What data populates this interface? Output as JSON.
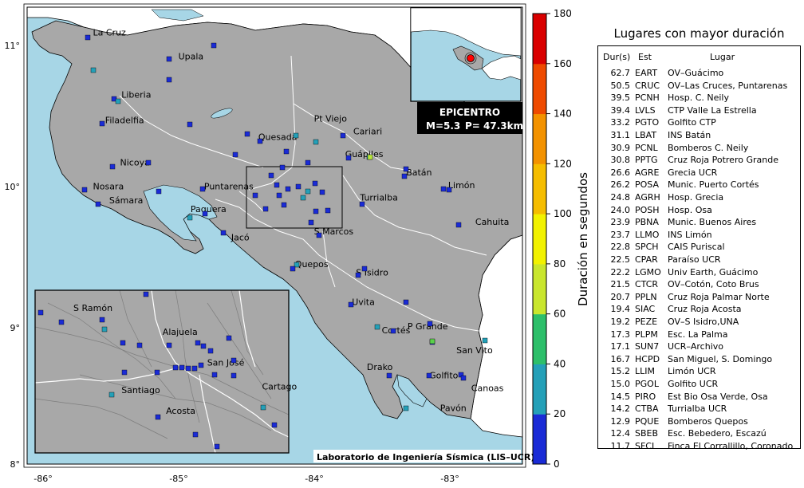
{
  "map": {
    "lat_ticks": [
      {
        "label": "11°",
        "value": 11
      },
      {
        "label": "10°",
        "value": 10
      },
      {
        "label": "9°",
        "value": 9
      },
      {
        "label": "8°",
        "value": 8
      }
    ],
    "lon_ticks": [
      {
        "label": "-86°",
        "value": -86
      },
      {
        "label": "-85°",
        "value": -85
      },
      {
        "label": "-84°",
        "value": -84
      },
      {
        "label": "-83°",
        "value": -83
      }
    ],
    "cities": [
      {
        "name": "La Cruz",
        "lon": -85.65,
        "lat": 11.07
      },
      {
        "name": "Upala",
        "lon": -85.02,
        "lat": 10.9
      },
      {
        "name": "Liberia",
        "lon": -85.44,
        "lat": 10.63
      },
      {
        "name": "Filadelfia",
        "lon": -85.56,
        "lat": 10.45
      },
      {
        "name": "Quesada",
        "lon": -84.43,
        "lat": 10.33
      },
      {
        "name": "Pt Viejo",
        "lon": -84.02,
        "lat": 10.46
      },
      {
        "name": "Cariari",
        "lon": -83.73,
        "lat": 10.37
      },
      {
        "name": "Nicoya",
        "lon": -85.45,
        "lat": 10.15
      },
      {
        "name": "Guápiles",
        "lon": -83.79,
        "lat": 10.21
      },
      {
        "name": "Batán",
        "lon": -83.34,
        "lat": 10.08
      },
      {
        "name": "Nosara",
        "lon": -85.65,
        "lat": 9.98
      },
      {
        "name": "Puntarenas",
        "lon": -84.83,
        "lat": 9.98
      },
      {
        "name": "Limón",
        "lon": -83.03,
        "lat": 9.99
      },
      {
        "name": "Sámara",
        "lon": -85.53,
        "lat": 9.88
      },
      {
        "name": "Turrialba",
        "lon": -83.68,
        "lat": 9.9
      },
      {
        "name": "Paquera",
        "lon": -84.93,
        "lat": 9.82
      },
      {
        "name": "Cahuita",
        "lon": -82.83,
        "lat": 9.73
      },
      {
        "name": "Jacó",
        "lon": -84.63,
        "lat": 9.62
      },
      {
        "name": "S Marcos",
        "lon": -84.02,
        "lat": 9.66
      },
      {
        "name": "Quepos",
        "lon": -84.16,
        "lat": 9.43
      },
      {
        "name": "S Isidro",
        "lon": -83.71,
        "lat": 9.37
      },
      {
        "name": "Uvita",
        "lon": -83.74,
        "lat": 9.16
      },
      {
        "name": "P Grande",
        "lon": -83.33,
        "lat": 8.99
      },
      {
        "name": "Cortés",
        "lon": -83.52,
        "lat": 8.96
      },
      {
        "name": "San Vito",
        "lon": -82.97,
        "lat": 8.82
      },
      {
        "name": "Drako",
        "lon": -83.63,
        "lat": 8.7
      },
      {
        "name": "Golfito",
        "lon": -83.17,
        "lat": 8.64
      },
      {
        "name": "Canoas",
        "lon": -82.86,
        "lat": 8.55
      },
      {
        "name": "Pavón",
        "lon": -83.09,
        "lat": 8.41
      }
    ],
    "inset_cities": [
      {
        "name": "S Ramón",
        "lon": -84.47,
        "lat": 10.09
      },
      {
        "name": "Alajuela",
        "lon": -84.21,
        "lat": 10.02
      },
      {
        "name": "San José",
        "lon": -84.08,
        "lat": 9.93
      },
      {
        "name": "Santiago",
        "lon": -84.33,
        "lat": 9.85
      },
      {
        "name": "Cartago",
        "lon": -83.92,
        "lat": 9.86
      },
      {
        "name": "Acosta",
        "lon": -84.2,
        "lat": 9.79
      }
    ],
    "credit": "Laboratorio de Ingeniería Sísmica (LIS–UCR)"
  },
  "epicenter_box": {
    "title": "EPICENTRO",
    "magnitude": "M=5.3",
    "depth": "P= 47.3km"
  },
  "colorbar": {
    "label": "Duración en segundos",
    "min": 0,
    "max": 180,
    "ticks": [
      "0",
      "20",
      "40",
      "60",
      "80",
      "100",
      "120",
      "140",
      "160",
      "180"
    ]
  },
  "table": {
    "title": "Lugares con mayor duración",
    "headers": {
      "dur": "Dur(s)",
      "est": "Est",
      "place": "Lugar"
    },
    "rows": [
      {
        "dur": "62.7",
        "est": "EART",
        "place": "OV–Guácimo"
      },
      {
        "dur": "50.5",
        "est": "CRUC",
        "place": "OV–Las Cruces, Puntarenas"
      },
      {
        "dur": "39.5",
        "est": "PCNH",
        "place": "Hosp. C. Neily"
      },
      {
        "dur": "39.4",
        "est": "LVLS",
        "place": "CTP Valle La Estrella"
      },
      {
        "dur": "33.2",
        "est": "PGTO",
        "place": "Golfito CTP"
      },
      {
        "dur": "31.1",
        "est": "LBAT",
        "place": "INS Batán"
      },
      {
        "dur": "30.9",
        "est": "PCNL",
        "place": "Bomberos C. Neily"
      },
      {
        "dur": "30.8",
        "est": "PPTG",
        "place": "Cruz Roja Potrero Grande"
      },
      {
        "dur": "26.6",
        "est": "AGRE",
        "place": "Grecia UCR"
      },
      {
        "dur": "26.2",
        "est": "POSA",
        "place": "Munic. Puerto Cortés"
      },
      {
        "dur": "24.8",
        "est": "AGRH",
        "place": "Hosp. Grecia"
      },
      {
        "dur": "24.0",
        "est": "POSH",
        "place": "Hosp. Osa"
      },
      {
        "dur": "23.9",
        "est": "PBNA",
        "place": "Munic. Buenos Aires"
      },
      {
        "dur": "23.7",
        "est": "LLMO",
        "place": "INS Limón"
      },
      {
        "dur": "22.8",
        "est": "SPCH",
        "place": "CAIS Puriscal"
      },
      {
        "dur": "22.5",
        "est": "CPAR",
        "place": "Paraíso UCR"
      },
      {
        "dur": "22.2",
        "est": "LGMO",
        "place": "Univ Earth, Guácimo"
      },
      {
        "dur": "21.5",
        "est": "CTCR",
        "place": "OV–Cotón, Coto Brus"
      },
      {
        "dur": "20.7",
        "est": "PPLN",
        "place": "Cruz Roja Palmar Norte"
      },
      {
        "dur": "19.4",
        "est": "SIAC",
        "place": "Cruz Roja Acosta"
      },
      {
        "dur": "19.2",
        "est": "PEZE",
        "place": "OV–S Isidro,UNA"
      },
      {
        "dur": "17.3",
        "est": "PLPM",
        "place": "Esc. La Palma"
      },
      {
        "dur": "17.1",
        "est": "SUN7",
        "place": "UCR–Archivo"
      },
      {
        "dur": "16.7",
        "est": "HCPD",
        "place": "San Miguel, S. Domingo"
      },
      {
        "dur": "15.2",
        "est": "LLIM",
        "place": "Limón UCR"
      },
      {
        "dur": "15.0",
        "est": "PGOL",
        "place": "Golfito UCR"
      },
      {
        "dur": "14.5",
        "est": "PIRO",
        "place": "Est Bio Osa Verde, Osa"
      },
      {
        "dur": "14.2",
        "est": "CTBA",
        "place": "Turrialba UCR"
      },
      {
        "dur": "12.9",
        "est": "PQUE",
        "place": "Bomberos Quepos"
      },
      {
        "dur": "12.4",
        "est": "SBEB",
        "place": "Esc. Bebedero, Escazú"
      },
      {
        "dur": "11.7",
        "est": "SFCL",
        "place": "Finca El Corrallillo, Coronado"
      }
    ]
  },
  "colors": {
    "ocean": "#a7d6e6",
    "land": "#a8a8a8",
    "inset_ocean": "#a7d6e6"
  }
}
